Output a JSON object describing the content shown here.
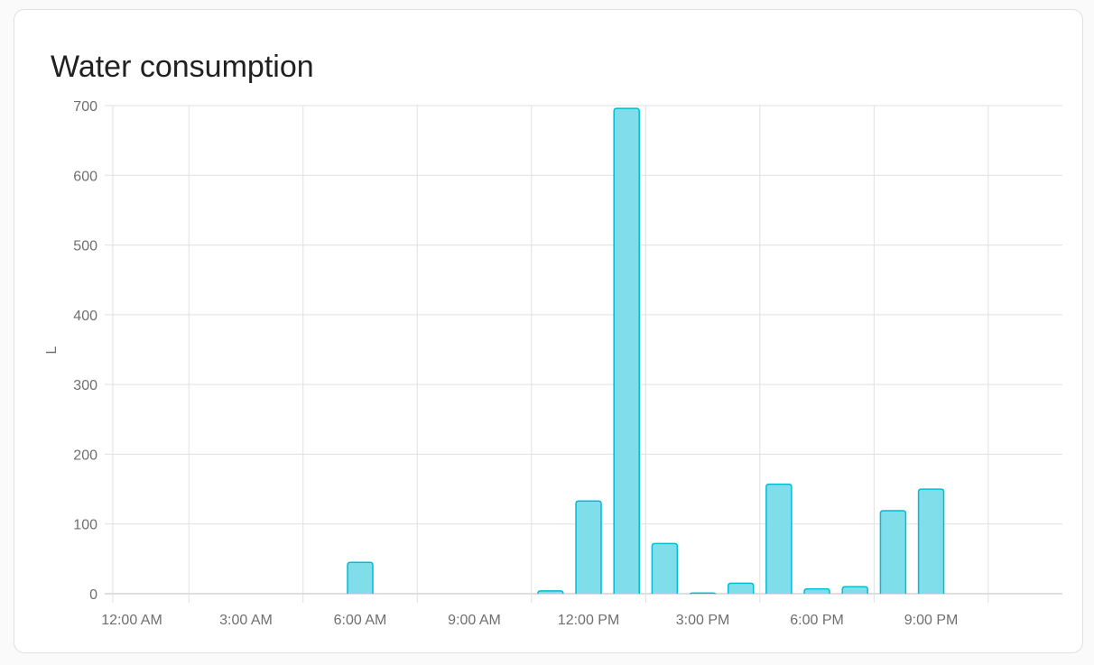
{
  "card": {
    "title": "Water consumption"
  },
  "chart_data": {
    "type": "bar",
    "title": "Water consumption",
    "ylabel": "L",
    "xlabel": "",
    "ylim": [
      0,
      700
    ],
    "yticks": [
      0,
      100,
      200,
      300,
      400,
      500,
      600,
      700
    ],
    "xtick_labels": [
      "12:00 AM",
      "3:00 AM",
      "6:00 AM",
      "9:00 AM",
      "12:00 PM",
      "3:00 PM",
      "6:00 PM",
      "9:00 PM"
    ],
    "categories": [
      "6:00 AM",
      "11:00 AM",
      "12:00 PM",
      "1:00 PM",
      "2:00 PM",
      "3:00 PM",
      "4:00 PM",
      "5:00 PM",
      "6:00 PM",
      "7:00 PM",
      "8:00 PM",
      "9:00 PM"
    ],
    "hours": [
      6,
      11,
      12,
      13,
      14,
      15,
      16,
      17,
      18,
      19,
      20,
      21
    ],
    "values": [
      45,
      4,
      133,
      696,
      72,
      1,
      15,
      157,
      7,
      10,
      119,
      150
    ],
    "grid": true,
    "colors": {
      "bar_fill": "#80deea",
      "bar_stroke": "#00bcd4",
      "grid": "#e0e0e0"
    }
  }
}
